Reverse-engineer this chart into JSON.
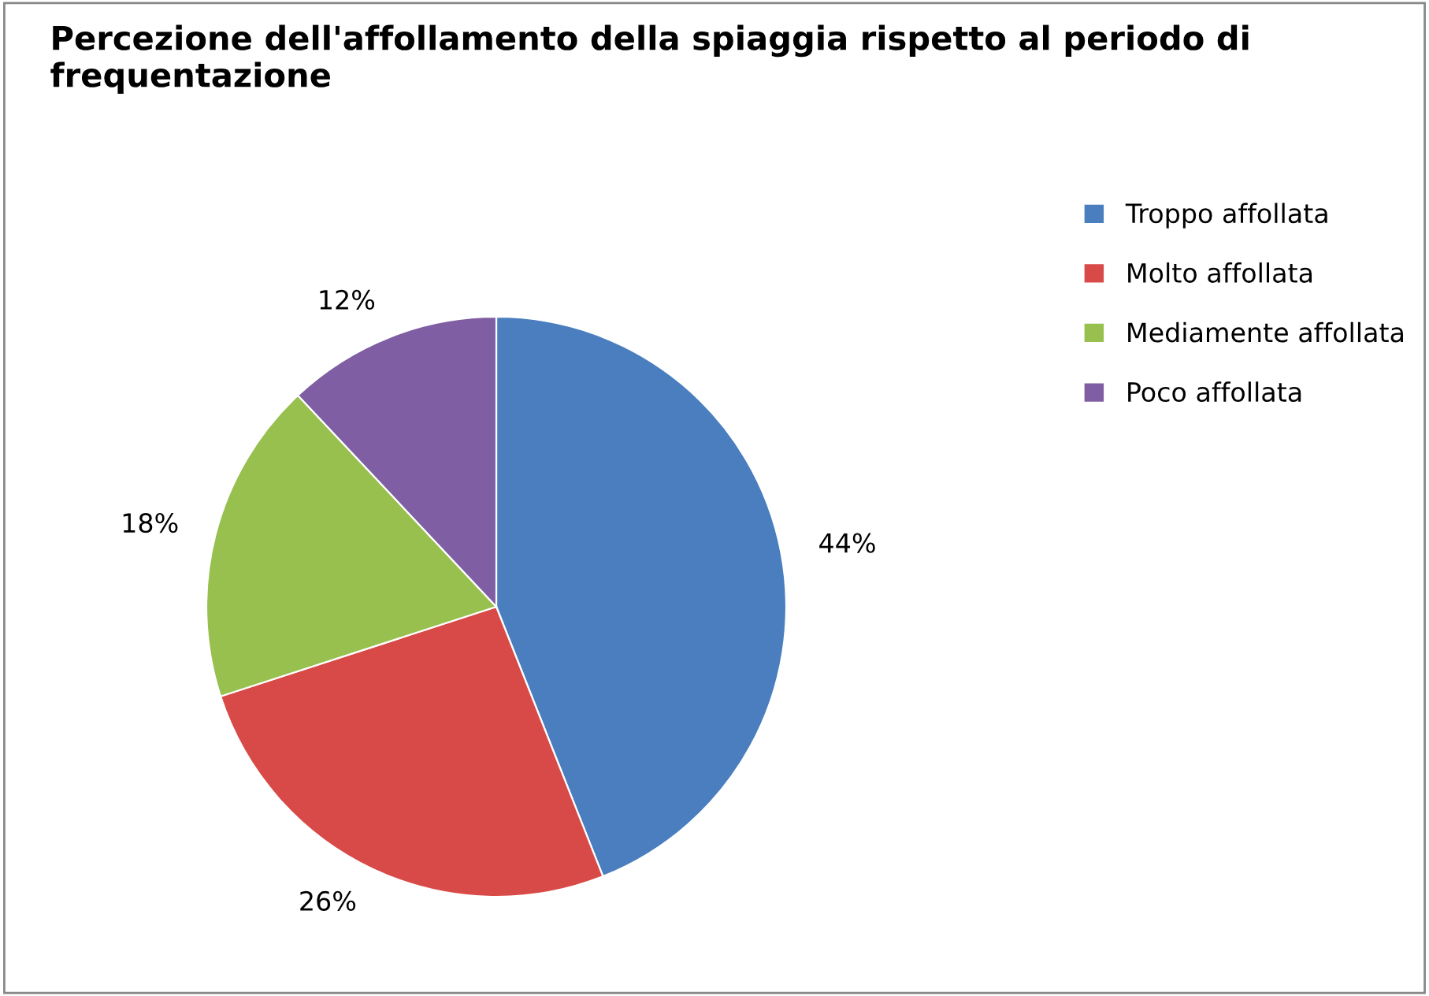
{
  "chart_data": {
    "type": "pie",
    "title": "Percezione dell'affollamento della spiaggia rispetto al periodo di frequentazione",
    "categories": [
      "Troppo affollata",
      "Molto affollata",
      "Mediamente affollata",
      "Poco affollata"
    ],
    "values": [
      44,
      26,
      18,
      12
    ],
    "colors": [
      "#4a7ebf",
      "#d84a47",
      "#97c04f",
      "#7f5ea3"
    ],
    "value_labels": [
      "44%",
      "26%",
      "18%",
      "12%"
    ],
    "legend": "right"
  }
}
